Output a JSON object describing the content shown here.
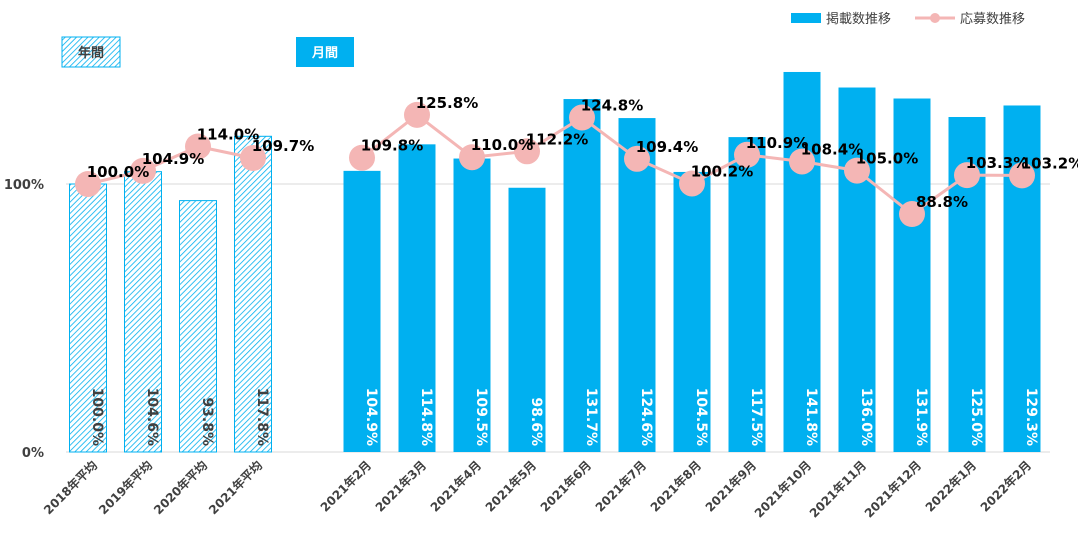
{
  "legend": {
    "bar_label": "掲載数推移",
    "line_label": "応募数推移"
  },
  "groups": {
    "annual_label": "年間",
    "monthly_label": "月間"
  },
  "colors": {
    "bar_monthly": "#00B0F0",
    "bar_annual_stroke": "#00B0F0",
    "line": "#F4B6B5",
    "marker": "#F4B6B5",
    "grid": "#D9D9D9",
    "axis_text": "#404040",
    "annual_bar_label": "#404040",
    "monthly_bar_label": "#ffffff"
  },
  "chart_data": {
    "type": "bar",
    "y_ticks": [
      "0%",
      "100%"
    ],
    "ylim": [
      0,
      160
    ],
    "grid": true,
    "legend_position": "top-right",
    "categories": [
      "2018年平均",
      "2019年平均",
      "2020年平均",
      "2021年平均",
      "2021年2月",
      "2021年3月",
      "2021年4月",
      "2021年5月",
      "2021年6月",
      "2021年7月",
      "2021年8月",
      "2021年9月",
      "2021年10月",
      "2021年11月",
      "2021年12月",
      "2022年1月",
      "2022年2月"
    ],
    "category_kind": [
      "annual",
      "annual",
      "annual",
      "annual",
      "monthly",
      "monthly",
      "monthly",
      "monthly",
      "monthly",
      "monthly",
      "monthly",
      "monthly",
      "monthly",
      "monthly",
      "monthly",
      "monthly",
      "monthly"
    ],
    "series": [
      {
        "name": "掲載数推移",
        "type": "bar",
        "values": [
          100.0,
          104.6,
          93.8,
          117.8,
          104.9,
          114.8,
          109.5,
          98.6,
          131.7,
          124.6,
          104.5,
          117.5,
          141.8,
          136.0,
          131.9,
          125.0,
          129.3
        ],
        "labels": [
          "100.0%",
          "104.6%",
          "93.8%",
          "117.8%",
          "104.9%",
          "114.8%",
          "109.5%",
          "98.6%",
          "131.7%",
          "124.6%",
          "104.5%",
          "117.5%",
          "141.8%",
          "136.0%",
          "131.9%",
          "125.0%",
          "129.3%"
        ]
      },
      {
        "name": "応募数推移",
        "type": "line",
        "values": [
          100.0,
          104.9,
          114.0,
          109.7,
          109.8,
          125.8,
          110.0,
          112.2,
          124.8,
          109.4,
          100.2,
          110.9,
          108.4,
          105.0,
          88.8,
          103.3,
          103.2
        ],
        "labels": [
          "100.0%",
          "104.9%",
          "114.0%",
          "109.7%",
          "109.8%",
          "125.8%",
          "110.0%",
          "112.2%",
          "124.8%",
          "109.4%",
          "100.2%",
          "110.9%",
          "108.4%",
          "105.0%",
          "88.8%",
          "103.3%",
          "103.2%"
        ]
      }
    ]
  }
}
